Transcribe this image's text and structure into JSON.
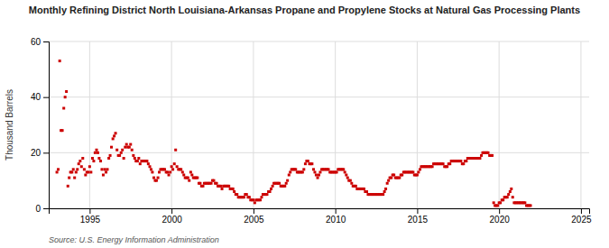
{
  "chart_data": {
    "type": "scatter",
    "title": "Monthly Refining District North Louisiana-Arkansas Propane and Propylene Stocks at Natural Gas Processing Plants",
    "ylabel": "Thousand Barrels",
    "annotations": [
      "Source: U.S. Energy Information Administration"
    ],
    "color": "#cc0000",
    "marker": "square",
    "grid": true,
    "xlim": [
      1992.5,
      2025.5
    ],
    "ylim": [
      0,
      60
    ],
    "xticks": [
      1995,
      2000,
      2005,
      2010,
      2015,
      2020,
      2025
    ],
    "yticks": [
      0,
      20,
      40,
      60
    ],
    "x": [
      1993.0,
      1993.08,
      1993.17,
      1993.25,
      1993.33,
      1993.42,
      1993.5,
      1993.58,
      1993.67,
      1993.75,
      1993.83,
      1993.92,
      1994.0,
      1994.08,
      1994.17,
      1994.25,
      1994.33,
      1994.42,
      1994.5,
      1994.58,
      1994.67,
      1994.75,
      1994.83,
      1994.92,
      1995.0,
      1995.08,
      1995.17,
      1995.25,
      1995.33,
      1995.42,
      1995.5,
      1995.58,
      1995.67,
      1995.75,
      1995.83,
      1995.92,
      1996.0,
      1996.08,
      1996.17,
      1996.25,
      1996.33,
      1996.42,
      1996.5,
      1996.58,
      1996.67,
      1996.75,
      1996.83,
      1996.92,
      1997.0,
      1997.08,
      1997.17,
      1997.25,
      1997.33,
      1997.42,
      1997.5,
      1997.58,
      1997.67,
      1997.75,
      1997.83,
      1997.92,
      1998.0,
      1998.08,
      1998.17,
      1998.25,
      1998.33,
      1998.42,
      1998.5,
      1998.58,
      1998.67,
      1998.75,
      1998.83,
      1998.92,
      1999.0,
      1999.08,
      1999.17,
      1999.25,
      1999.33,
      1999.42,
      1999.5,
      1999.58,
      1999.67,
      1999.75,
      1999.83,
      1999.92,
      2000.0,
      2000.08,
      2000.17,
      2000.25,
      2000.33,
      2000.42,
      2000.5,
      2000.58,
      2000.67,
      2000.75,
      2000.83,
      2000.92,
      2001.0,
      2001.08,
      2001.17,
      2001.25,
      2001.33,
      2001.42,
      2001.5,
      2001.58,
      2001.67,
      2001.75,
      2001.83,
      2001.92,
      2002.0,
      2002.08,
      2002.17,
      2002.25,
      2002.33,
      2002.42,
      2002.5,
      2002.58,
      2002.67,
      2002.75,
      2002.83,
      2002.92,
      2003.0,
      2003.08,
      2003.17,
      2003.25,
      2003.33,
      2003.42,
      2003.5,
      2003.58,
      2003.67,
      2003.75,
      2003.83,
      2003.92,
      2004.0,
      2004.08,
      2004.17,
      2004.25,
      2004.33,
      2004.42,
      2004.5,
      2004.58,
      2004.67,
      2004.75,
      2004.83,
      2004.92,
      2005.0,
      2005.08,
      2005.17,
      2005.25,
      2005.33,
      2005.42,
      2005.5,
      2005.58,
      2005.67,
      2005.75,
      2005.83,
      2005.92,
      2006.0,
      2006.08,
      2006.17,
      2006.25,
      2006.33,
      2006.42,
      2006.5,
      2006.58,
      2006.67,
      2006.75,
      2006.83,
      2006.92,
      2007.0,
      2007.08,
      2007.17,
      2007.25,
      2007.33,
      2007.42,
      2007.5,
      2007.58,
      2007.67,
      2007.75,
      2007.83,
      2007.92,
      2008.0,
      2008.08,
      2008.17,
      2008.25,
      2008.33,
      2008.42,
      2008.5,
      2008.58,
      2008.67,
      2008.75,
      2008.83,
      2008.92,
      2009.0,
      2009.08,
      2009.17,
      2009.25,
      2009.33,
      2009.42,
      2009.5,
      2009.58,
      2009.67,
      2009.75,
      2009.83,
      2009.92,
      2010.0,
      2010.08,
      2010.17,
      2010.25,
      2010.33,
      2010.42,
      2010.5,
      2010.58,
      2010.67,
      2010.75,
      2010.83,
      2010.92,
      2011.0,
      2011.08,
      2011.17,
      2011.25,
      2011.33,
      2011.42,
      2011.5,
      2011.58,
      2011.67,
      2011.75,
      2011.83,
      2011.92,
      2012.0,
      2012.08,
      2012.17,
      2012.25,
      2012.33,
      2012.42,
      2012.5,
      2012.58,
      2012.67,
      2012.75,
      2012.83,
      2012.92,
      2013.0,
      2013.08,
      2013.17,
      2013.25,
      2013.33,
      2013.42,
      2013.5,
      2013.58,
      2013.67,
      2013.75,
      2013.83,
      2013.92,
      2014.0,
      2014.08,
      2014.17,
      2014.25,
      2014.33,
      2014.42,
      2014.5,
      2014.58,
      2014.67,
      2014.75,
      2014.83,
      2014.92,
      2015.0,
      2015.08,
      2015.17,
      2015.25,
      2015.33,
      2015.42,
      2015.5,
      2015.58,
      2015.67,
      2015.75,
      2015.83,
      2015.92,
      2016.0,
      2016.08,
      2016.17,
      2016.25,
      2016.33,
      2016.42,
      2016.5,
      2016.58,
      2016.67,
      2016.75,
      2016.83,
      2016.92,
      2017.0,
      2017.08,
      2017.17,
      2017.25,
      2017.33,
      2017.42,
      2017.5,
      2017.58,
      2017.67,
      2017.75,
      2017.83,
      2017.92,
      2018.0,
      2018.08,
      2018.17,
      2018.25,
      2018.33,
      2018.42,
      2018.5,
      2018.58,
      2018.67,
      2018.75,
      2018.83,
      2018.92,
      2019.0,
      2019.08,
      2019.17,
      2019.25,
      2019.33,
      2019.42,
      2019.5,
      2019.58,
      2019.67,
      2019.75,
      2019.83,
      2019.92,
      2020.0,
      2020.08,
      2020.17,
      2020.25,
      2020.33,
      2020.42,
      2020.5,
      2020.58,
      2020.67,
      2020.75,
      2020.83,
      2020.92,
      2021.0,
      2021.08,
      2021.17,
      2021.25,
      2021.33,
      2021.42,
      2021.5,
      2021.58,
      2021.67,
      2021.75,
      2021.83,
      2021.92
    ],
    "values": [
      13.0,
      14.0,
      53.0,
      28.0,
      28.0,
      36.0,
      40.0,
      42.0,
      8.0,
      11.0,
      13.0,
      13.0,
      14.0,
      11.0,
      13.0,
      14.0,
      16.0,
      17.0,
      15.0,
      18.0,
      14.0,
      12.0,
      13.0,
      13.0,
      15.0,
      13.0,
      18.0,
      17.0,
      20.0,
      21.0,
      20.0,
      18.0,
      17.0,
      14.0,
      12.0,
      14.0,
      13.0,
      14.0,
      18.0,
      19.0,
      22.0,
      25.0,
      26.0,
      27.0,
      21.0,
      19.0,
      19.0,
      20.0,
      21.0,
      18.0,
      22.0,
      23.0,
      22.0,
      22.0,
      23.0,
      21.0,
      19.0,
      18.0,
      17.0,
      17.0,
      18.0,
      16.0,
      17.0,
      17.0,
      17.0,
      17.0,
      17.0,
      16.0,
      15.0,
      14.0,
      13.0,
      11.0,
      10.0,
      10.0,
      11.0,
      13.0,
      14.0,
      14.0,
      14.0,
      14.0,
      13.0,
      13.0,
      12.0,
      13.0,
      15.0,
      14.0,
      16.0,
      21.0,
      15.0,
      14.0,
      14.0,
      14.0,
      13.0,
      12.0,
      11.0,
      11.0,
      11.0,
      10.0,
      13.0,
      12.0,
      11.0,
      11.0,
      11.0,
      11.0,
      9.0,
      9.0,
      8.0,
      8.0,
      9.0,
      9.0,
      9.0,
      9.0,
      9.0,
      9.0,
      10.0,
      10.0,
      9.0,
      9.0,
      8.0,
      8.0,
      8.0,
      7.0,
      8.0,
      8.0,
      8.0,
      8.0,
      8.0,
      7.0,
      7.0,
      7.0,
      6.0,
      5.0,
      5.0,
      4.0,
      4.0,
      4.0,
      4.0,
      4.0,
      5.0,
      5.0,
      4.0,
      4.0,
      3.0,
      3.0,
      3.0,
      2.0,
      3.0,
      3.0,
      3.0,
      3.0,
      4.0,
      5.0,
      5.0,
      5.0,
      5.0,
      6.0,
      6.0,
      7.0,
      8.0,
      9.0,
      9.0,
      9.0,
      9.0,
      9.0,
      8.0,
      8.0,
      8.0,
      8.0,
      9.0,
      10.0,
      12.0,
      13.0,
      14.0,
      14.0,
      14.0,
      14.0,
      13.0,
      13.0,
      13.0,
      13.0,
      13.0,
      14.0,
      16.0,
      17.0,
      17.0,
      16.0,
      16.0,
      16.0,
      14.0,
      13.0,
      12.0,
      11.0,
      12.0,
      13.0,
      14.0,
      14.0,
      14.0,
      14.0,
      14.0,
      14.0,
      13.0,
      13.0,
      13.0,
      13.0,
      13.0,
      13.0,
      14.0,
      14.0,
      14.0,
      14.0,
      14.0,
      13.0,
      12.0,
      11.0,
      10.0,
      10.0,
      9.0,
      8.0,
      8.0,
      8.0,
      7.0,
      7.0,
      7.0,
      7.0,
      7.0,
      7.0,
      6.0,
      6.0,
      5.0,
      5.0,
      5.0,
      5.0,
      5.0,
      5.0,
      5.0,
      5.0,
      5.0,
      5.0,
      5.0,
      5.0,
      6.0,
      7.0,
      9.0,
      10.0,
      11.0,
      11.0,
      12.0,
      12.0,
      11.0,
      11.0,
      11.0,
      11.0,
      12.0,
      12.0,
      13.0,
      13.0,
      13.0,
      13.0,
      13.0,
      13.0,
      13.0,
      13.0,
      12.0,
      12.0,
      12.0,
      13.0,
      14.0,
      15.0,
      15.0,
      15.0,
      15.0,
      15.0,
      15.0,
      15.0,
      15.0,
      15.0,
      16.0,
      16.0,
      16.0,
      16.0,
      16.0,
      16.0,
      16.0,
      16.0,
      15.0,
      15.0,
      15.0,
      16.0,
      16.0,
      17.0,
      17.0,
      17.0,
      17.0,
      17.0,
      17.0,
      17.0,
      17.0,
      16.0,
      16.0,
      17.0,
      17.0,
      18.0,
      18.0,
      18.0,
      18.0,
      18.0,
      18.0,
      18.0,
      18.0,
      18.0,
      18.0,
      19.0,
      20.0,
      20.0,
      20.0,
      20.0,
      20.0,
      19.0,
      19.0,
      19.0,
      2.0,
      1.0,
      1.0,
      1.0,
      2.0,
      2.0,
      3.0,
      3.0,
      4.0,
      4.0,
      4.0,
      5.0,
      6.0,
      7.0,
      4.0,
      2.0,
      2.0,
      2.0,
      2.0,
      2.0,
      2.0,
      2.0,
      2.0,
      2.0,
      1.0,
      1.0,
      1.0,
      1.0
    ]
  }
}
